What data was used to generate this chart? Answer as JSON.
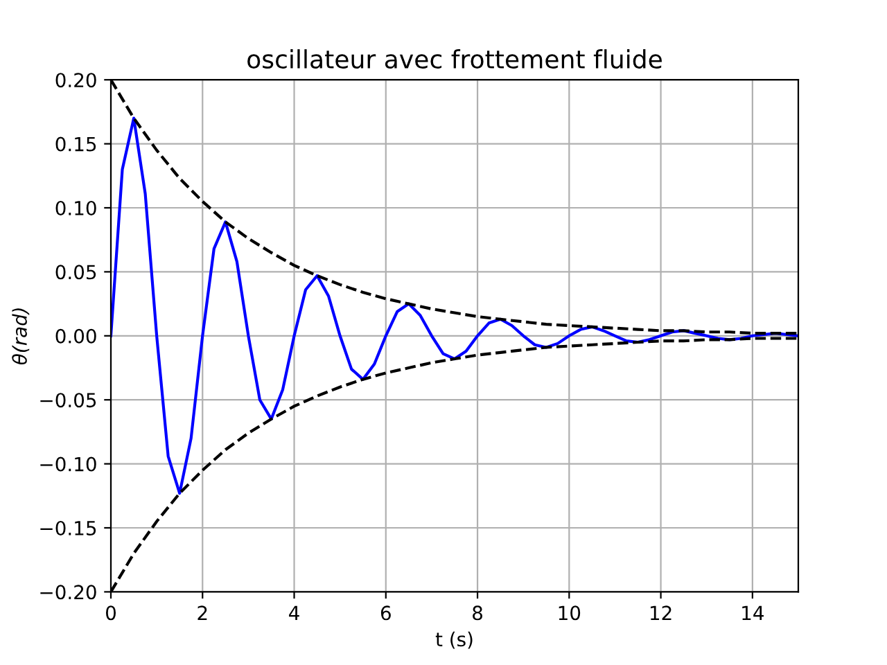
{
  "chart_data": {
    "type": "line",
    "title": "oscillateur avec frottement fluide",
    "xlabel": "t (s)",
    "ylabel": "θ(rad)",
    "xlim": [
      0,
      15
    ],
    "ylim": [
      -0.2,
      0.2
    ],
    "xticks": [
      0,
      2,
      4,
      6,
      8,
      10,
      12,
      14
    ],
    "yticks": [
      {
        "value": -0.2,
        "label": "−0.20"
      },
      {
        "value": -0.15,
        "label": "−0.15"
      },
      {
        "value": -0.1,
        "label": "−0.10"
      },
      {
        "value": -0.05,
        "label": "−0.05"
      },
      {
        "value": 0,
        "label": "0.00"
      },
      {
        "value": 0.05,
        "label": "0.05"
      },
      {
        "value": 0.1,
        "label": "0.10"
      },
      {
        "value": 0.15,
        "label": "0.15"
      },
      {
        "value": 0.2,
        "label": "0.20"
      }
    ],
    "grid": true,
    "legend": false,
    "series": [
      {
        "color": "#0000ff",
        "line_style": "solid",
        "x": [
          0,
          0.25,
          0.5,
          0.75,
          1,
          1.25,
          1.5,
          1.75,
          2,
          2.25,
          2.5,
          2.75,
          3,
          3.25,
          3.5,
          3.75,
          4,
          4.25,
          4.5,
          4.75,
          5,
          5.25,
          5.5,
          5.75,
          6,
          6.25,
          6.5,
          6.75,
          7,
          7.25,
          7.5,
          7.75,
          8,
          8.25,
          8.5,
          8.75,
          9,
          9.25,
          9.5,
          9.75,
          10,
          10.25,
          10.5,
          10.75,
          11,
          11.25,
          11.5,
          11.75,
          12,
          12.25,
          12.5,
          12.75,
          13,
          13.25,
          13.5,
          13.75,
          14,
          14.25,
          14.5,
          14.75,
          15
        ],
        "values": [
          0,
          0.13,
          0.17,
          0.111,
          0,
          -0.094,
          -0.123,
          -0.08,
          0,
          0.068,
          0.089,
          0.058,
          0,
          -0.05,
          -0.065,
          -0.042,
          0,
          0.036,
          0.047,
          0.031,
          0,
          -0.026,
          -0.034,
          -0.022,
          0,
          0.019,
          0.025,
          0.016,
          0,
          -0.014,
          -0.018,
          -0.012,
          0,
          0.01,
          0.013,
          0.008,
          0,
          -0.007,
          -0.009,
          -0.006,
          0,
          0.005,
          0.007,
          0.004,
          0,
          -0.004,
          -0.005,
          -0.003,
          0,
          0.003,
          0.004,
          0.002,
          0,
          -0.002,
          -0.003,
          -0.002,
          0,
          0.001,
          0.002,
          0.001,
          0
        ]
      },
      {
        "color": "#000000",
        "line_style": "dashed",
        "x": [
          0,
          0.5,
          1,
          1.5,
          2,
          2.5,
          3,
          3.5,
          4,
          4.5,
          5,
          5.5,
          6,
          6.5,
          7,
          7.5,
          8,
          8.5,
          9,
          9.5,
          10,
          10.5,
          11,
          11.5,
          12,
          12.5,
          13,
          13.5,
          14,
          14.5,
          15
        ],
        "values": [
          0.2,
          0.17,
          0.145,
          0.123,
          0.105,
          0.089,
          0.076,
          0.065,
          0.055,
          0.047,
          0.04,
          0.034,
          0.029,
          0.025,
          0.021,
          0.018,
          0.015,
          0.013,
          0.011,
          0.009,
          0.008,
          0.007,
          0.006,
          0.005,
          0.004,
          0.004,
          0.003,
          0.003,
          0.002,
          0.002,
          0.002
        ]
      },
      {
        "color": "#000000",
        "line_style": "dashed",
        "x": [
          0,
          0.5,
          1,
          1.5,
          2,
          2.5,
          3,
          3.5,
          4,
          4.5,
          5,
          5.5,
          6,
          6.5,
          7,
          7.5,
          8,
          8.5,
          9,
          9.5,
          10,
          10.5,
          11,
          11.5,
          12,
          12.5,
          13,
          13.5,
          14,
          14.5,
          15
        ],
        "values": [
          -0.2,
          -0.17,
          -0.145,
          -0.123,
          -0.105,
          -0.089,
          -0.076,
          -0.065,
          -0.055,
          -0.047,
          -0.04,
          -0.034,
          -0.029,
          -0.025,
          -0.021,
          -0.018,
          -0.015,
          -0.013,
          -0.011,
          -0.009,
          -0.008,
          -0.007,
          -0.006,
          -0.005,
          -0.004,
          -0.004,
          -0.003,
          -0.003,
          -0.002,
          -0.002,
          -0.002
        ]
      }
    ]
  }
}
